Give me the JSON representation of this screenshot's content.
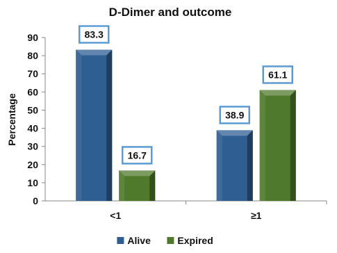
{
  "chart_data": {
    "type": "bar",
    "title": "D-Dimer and outcome",
    "xlabel": "",
    "ylabel": "Percentage",
    "categories": [
      "<1",
      "≥1"
    ],
    "ylim": [
      0,
      90
    ],
    "yticks": [
      0,
      10,
      20,
      30,
      40,
      50,
      60,
      70,
      80,
      90
    ],
    "grid": false,
    "legend": "bottom",
    "series": [
      {
        "name": "Alive",
        "values": [
          83.3,
          38.9
        ],
        "color": "#2e5e92"
      },
      {
        "name": "Expired",
        "values": [
          16.7,
          61.1
        ],
        "color": "#4f7a2b"
      }
    ],
    "data_labels": [
      [
        "83.3",
        "38.9"
      ],
      [
        "16.7",
        "61.1"
      ]
    ],
    "label_box_color": "#5b9bd5"
  }
}
